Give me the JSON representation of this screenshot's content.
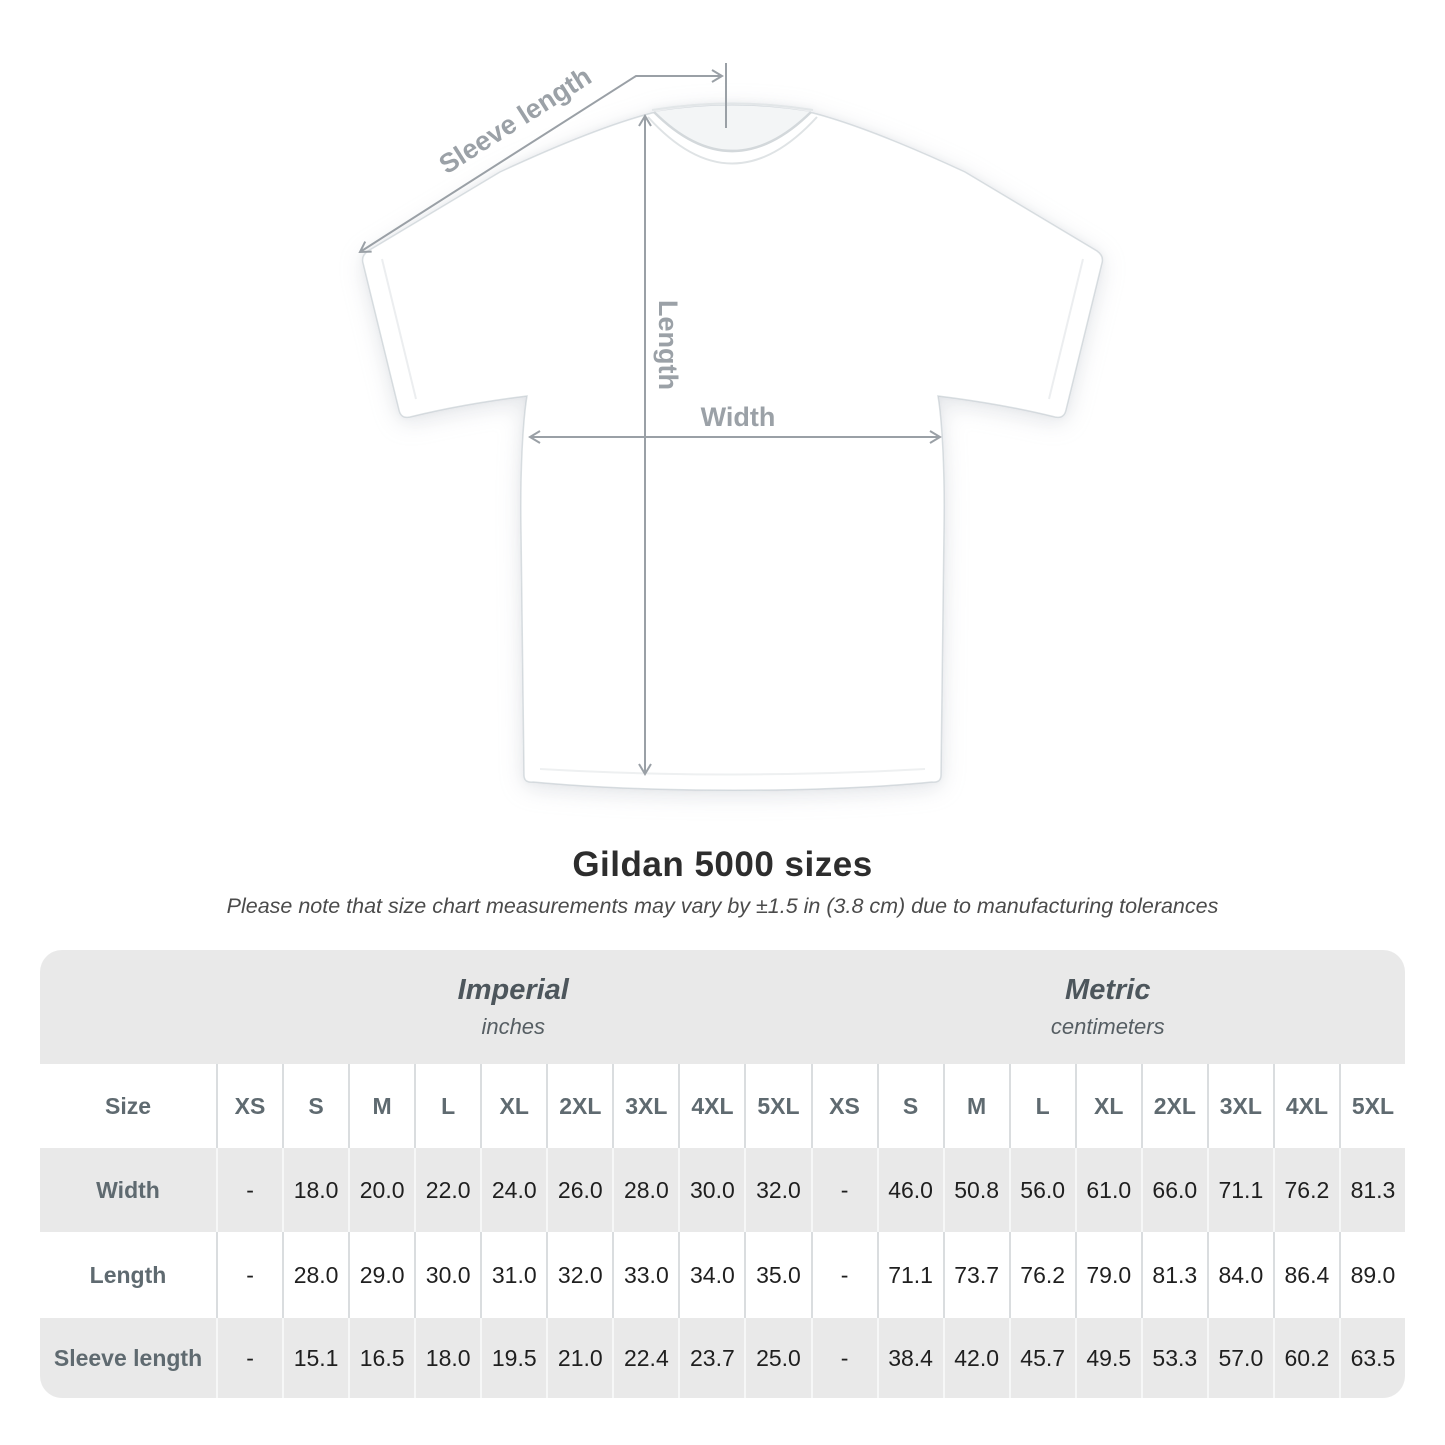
{
  "diagram": {
    "labels": {
      "sleeve": "Sleeve length",
      "length": "Length",
      "width": "Width"
    },
    "arrow_color": "#9aa0a6"
  },
  "title": "Gildan 5000 sizes",
  "subtitle": "Please note that size chart measurements may vary by ±1.5 in (3.8 cm) due to manufacturing tolerances",
  "table": {
    "size_label": "Size",
    "group_headers": [
      {
        "label": "Imperial",
        "sublabel": "inches"
      },
      {
        "label": "Metric",
        "sublabel": "centimeters"
      }
    ],
    "sizes": [
      "XS",
      "S",
      "M",
      "L",
      "XL",
      "2XL",
      "3XL",
      "4XL",
      "5XL"
    ],
    "rows": [
      {
        "label": "Width",
        "imperial": [
          "-",
          "18.0",
          "20.0",
          "22.0",
          "24.0",
          "26.0",
          "28.0",
          "30.0",
          "32.0"
        ],
        "metric": [
          "-",
          "46.0",
          "50.8",
          "56.0",
          "61.0",
          "66.0",
          "71.1",
          "76.2",
          "81.3"
        ]
      },
      {
        "label": "Length",
        "imperial": [
          "-",
          "28.0",
          "29.0",
          "30.0",
          "31.0",
          "32.0",
          "33.0",
          "34.0",
          "35.0"
        ],
        "metric": [
          "-",
          "71.1",
          "73.7",
          "76.2",
          "79.0",
          "81.3",
          "84.0",
          "86.4",
          "89.0"
        ]
      },
      {
        "label": "Sleeve length",
        "imperial": [
          "-",
          "15.1",
          "16.5",
          "18.0",
          "19.5",
          "21.0",
          "22.4",
          "23.7",
          "25.0"
        ],
        "metric": [
          "-",
          "38.4",
          "42.0",
          "45.7",
          "49.5",
          "53.3",
          "57.0",
          "60.2",
          "63.5"
        ]
      }
    ]
  },
  "colors": {
    "row_gray": "#e9e9e9",
    "arrow_gray": "#9aa0a6",
    "header_text": "#5f6a70",
    "value_text": "#1f1f1f",
    "title_text": "#2d2d2d"
  }
}
